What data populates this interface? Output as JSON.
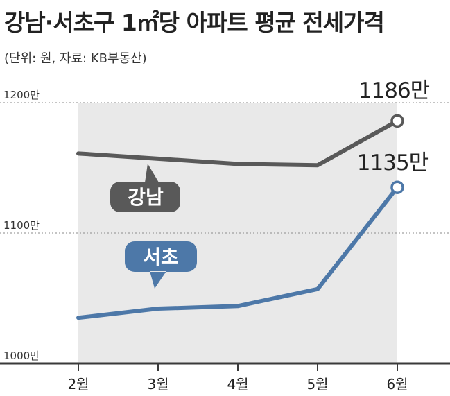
{
  "title": "강남·서초구 1㎡당 아파트 평균 전세가격",
  "subtitle": "(단위: 원, 자료: KB부동산)",
  "colors": {
    "gangnam": "#595959",
    "seocho": "#4d78a8",
    "area": "#e9e9e9",
    "axis": "#3a3a3a"
  },
  "chart_data": {
    "type": "line",
    "categories": [
      "2월",
      "3월",
      "4월",
      "5월",
      "6월"
    ],
    "ylim": [
      1000,
      1200
    ],
    "y_ticks": [
      {
        "value": 1200,
        "label": "1200만"
      },
      {
        "value": 1100,
        "label": "1100만"
      },
      {
        "value": 1000,
        "label": "1000만"
      }
    ],
    "series": [
      {
        "name": "강남",
        "values": [
          1161,
          1157,
          1153,
          1152,
          1186
        ],
        "end_label": "1186만"
      },
      {
        "name": "서초",
        "values": [
          1035,
          1042,
          1044,
          1057,
          1135
        ],
        "end_label": "1135만"
      }
    ]
  }
}
